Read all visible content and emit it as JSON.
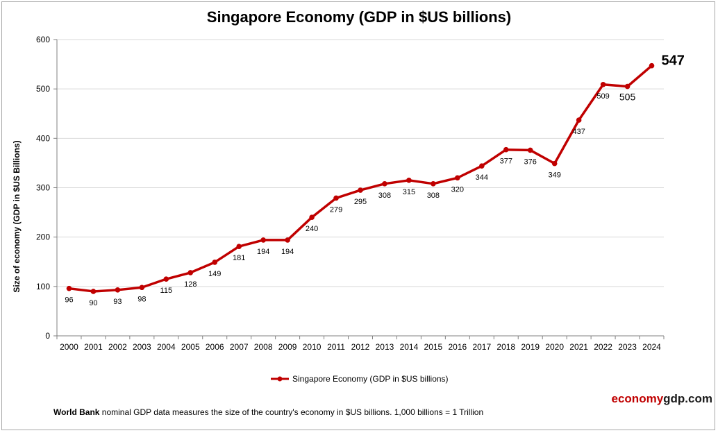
{
  "chart_data": {
    "type": "line",
    "title": "Singapore Economy (GDP in $US billions)",
    "ylabel": "Size of economy (GDP in $US Billions)",
    "xlabel": "",
    "ylim": [
      0,
      600
    ],
    "yticks": [
      0,
      100,
      200,
      300,
      400,
      500,
      600
    ],
    "grid": true,
    "legend_position": "bottom",
    "categories": [
      "2000",
      "2001",
      "2002",
      "2003",
      "2004",
      "2005",
      "2006",
      "2007",
      "2008",
      "2009",
      "2010",
      "2011",
      "2012",
      "2013",
      "2014",
      "2015",
      "2016",
      "2017",
      "2018",
      "2019",
      "2020",
      "2021",
      "2022",
      "2023",
      "2024"
    ],
    "series": [
      {
        "name": "Singapore Economy (GDP in $US billions)",
        "color": "#c00000",
        "values": [
          96,
          90,
          93,
          98,
          115,
          128,
          149,
          181,
          194,
          194,
          240,
          279,
          295,
          308,
          315,
          308,
          320,
          344,
          377,
          376,
          349,
          437,
          509,
          505,
          547
        ]
      }
    ]
  },
  "footer": {
    "source_bold": "World Bank",
    "source_text": " nominal GDP data  measures the size of the country's economy in $US billions. 1,000 billions = 1 Trillion"
  },
  "brand": {
    "part1": "economy",
    "part2": "gdp.com"
  }
}
